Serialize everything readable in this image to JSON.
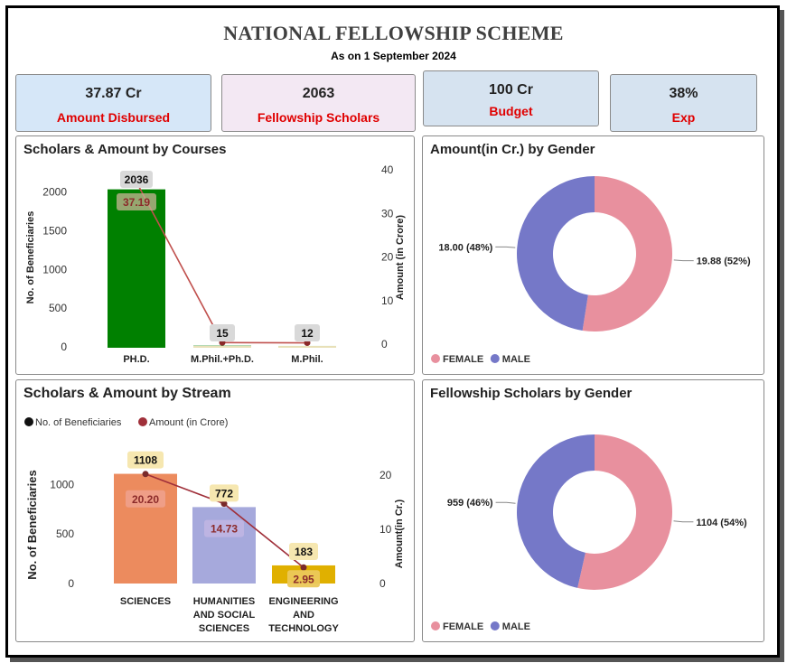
{
  "header": {
    "title": "NATIONAL FELLOWSHIP SCHEME",
    "subtitle": "As on 1 September 2024"
  },
  "kpis": [
    {
      "value": "37.87 Cr",
      "label": "Amount Disbursed",
      "bg": "#d6e7f8"
    },
    {
      "value": "2063",
      "label": "Fellowship Scholars",
      "bg": "#f3e8f3"
    },
    {
      "value": "100 Cr",
      "label": "Budget",
      "bg": "#d6e3f0"
    },
    {
      "value": "38%",
      "label": "Exp",
      "bg": "#d6e3f0"
    }
  ],
  "panels": {
    "courses": {
      "title": "Scholars & Amount by Courses"
    },
    "gender_amount": {
      "title": "Amount(in Cr.) by Gender"
    },
    "stream": {
      "title": "Scholars & Amount by Stream"
    },
    "gender_scholars": {
      "title": "Fellowship Scholars by Gender"
    }
  },
  "chart_data": [
    {
      "type": "bar",
      "title": "Scholars & Amount by Courses",
      "categories": [
        "PH.D.",
        "M.Phil.+Ph.D.",
        "M.Phil."
      ],
      "series": [
        {
          "name": "No. of Beneficiaries",
          "values": [
            2036,
            15,
            12
          ],
          "color": "#008000",
          "data_labels": [
            "2036",
            "15",
            "12"
          ]
        },
        {
          "name": "Amount (in Crore)",
          "type": "line",
          "values": [
            37.19,
            0.35,
            0.3
          ],
          "color": "#c0504d",
          "data_labels": [
            "37.19",
            "",
            ""
          ]
        }
      ],
      "ylabel": "No. of Beneficiaries",
      "y2label": "Amount (in Crore)",
      "ylim": [
        0,
        2300
      ],
      "y2lim": [
        0,
        40
      ],
      "yticks": [
        0,
        500,
        1000,
        1500,
        2000
      ],
      "y2ticks": [
        0,
        10,
        20,
        30,
        40
      ],
      "grid": false
    },
    {
      "type": "pie",
      "title": "Amount(in Cr.) by Gender",
      "donut": true,
      "slices": [
        {
          "name": "FEMALE",
          "value": 19.88,
          "label": "19.88 (52%)",
          "color": "#e8909e"
        },
        {
          "name": "MALE",
          "value": 18.0,
          "label": "18.00 (48%)",
          "color": "#7578c8"
        }
      ],
      "legend": "bottom-left"
    },
    {
      "type": "bar",
      "title": "Scholars & Amount by Stream",
      "categories": [
        "SCIENCES",
        "HUMANITIES AND SOCIAL SCIENCES",
        "ENGINEERING AND TECHNOLOGY"
      ],
      "category_lines": [
        [
          "SCIENCES"
        ],
        [
          "HUMANITIES",
          "AND SOCIAL",
          "SCIENCES"
        ],
        [
          "ENGINEERING",
          "AND",
          "TECHNOLOGY"
        ]
      ],
      "series": [
        {
          "name": "No. of Beneficiaries",
          "values": [
            1108,
            772,
            183
          ],
          "colors": [
            "#ec8b5e",
            "#a6a9dc",
            "#e0b000"
          ],
          "legend_color": "#111111",
          "data_labels": [
            "1108",
            "772",
            "183"
          ]
        },
        {
          "name": "Amount (in Crore)",
          "type": "line",
          "values": [
            20.2,
            14.73,
            2.95
          ],
          "color": "#a0303a",
          "data_labels": [
            "20.20",
            "14.73",
            "2.95"
          ]
        }
      ],
      "ylabel": "No. of Beneficiaries",
      "y2label": "Amount(in Cr.)",
      "ylim": [
        0,
        1250
      ],
      "y2lim": [
        0,
        25
      ],
      "yticks": [
        0,
        500,
        1000
      ],
      "y2ticks": [
        0,
        10,
        20
      ],
      "legend": "top-left",
      "grid": false
    },
    {
      "type": "pie",
      "title": "Fellowship Scholars by Gender",
      "donut": true,
      "slices": [
        {
          "name": "FEMALE",
          "value": 1104,
          "label": "1104 (54%)",
          "color": "#e8909e"
        },
        {
          "name": "MALE",
          "value": 959,
          "label": "959 (46%)",
          "color": "#7578c8"
        }
      ],
      "legend": "bottom-left"
    }
  ]
}
